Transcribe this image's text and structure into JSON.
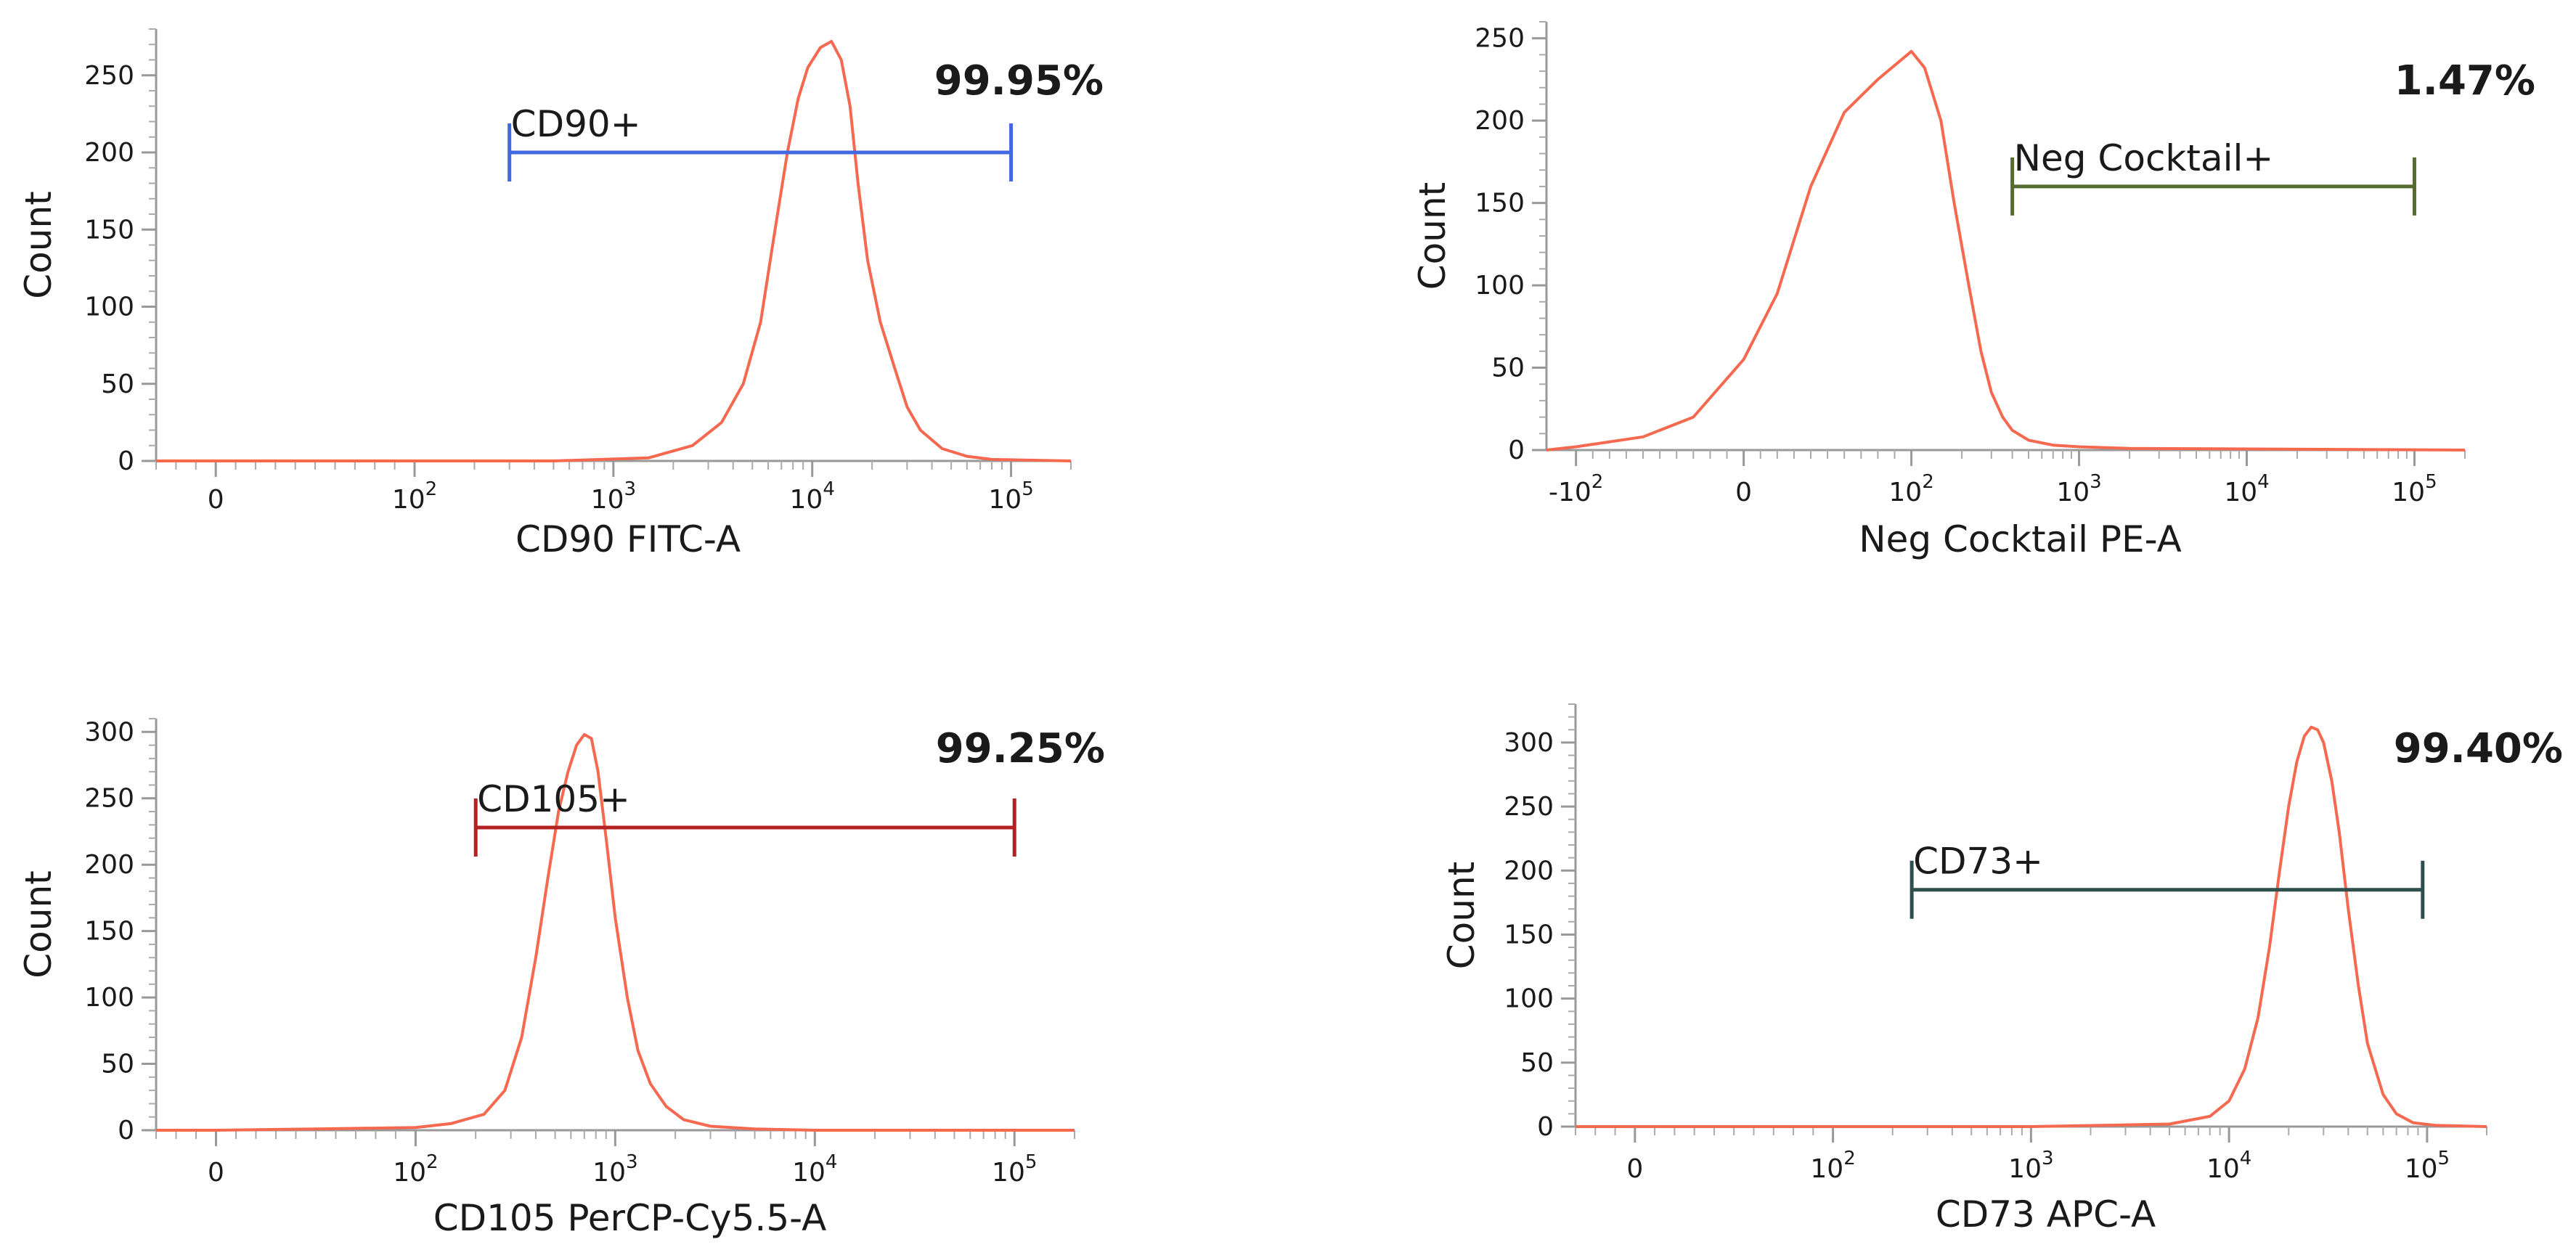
{
  "colors": {
    "histogram": "#f4694f",
    "axis": "#999999",
    "text": "#1a1a1a"
  },
  "chart_data": [
    {
      "type": "line",
      "title": "",
      "xlabel": "CD90 FITC-A",
      "ylabel": "Count",
      "percent": "99.95%",
      "x_scale": "logicle",
      "xlim": [
        -30,
        200000
      ],
      "ylim": [
        0,
        280
      ],
      "y_ticks": [
        0,
        50,
        100,
        150,
        200,
        250
      ],
      "x_ticks": [
        {
          "value": 0,
          "base": "0",
          "exp": ""
        },
        {
          "value": 100,
          "base": "10",
          "exp": "2"
        },
        {
          "value": 1000,
          "base": "10",
          "exp": "3"
        },
        {
          "value": 10000,
          "base": "10",
          "exp": "4"
        },
        {
          "value": 100000,
          "base": "10",
          "exp": "5"
        }
      ],
      "gate": {
        "label": "CD90+",
        "from": 300,
        "to": 100000,
        "y": 200,
        "color": "#4169e1"
      },
      "series": [
        {
          "name": "CD90",
          "x": [
            -30,
            0,
            100,
            500,
            1500,
            2500,
            3500,
            4500,
            5500,
            6500,
            7500,
            8500,
            9500,
            11000,
            12500,
            14000,
            15500,
            17000,
            19000,
            22000,
            26000,
            30000,
            35000,
            45000,
            60000,
            80000,
            200000
          ],
          "y": [
            0,
            0,
            0,
            0,
            2,
            10,
            25,
            50,
            90,
            150,
            200,
            235,
            255,
            268,
            272,
            260,
            230,
            180,
            130,
            90,
            60,
            35,
            20,
            8,
            3,
            1,
            0
          ]
        }
      ]
    },
    {
      "type": "line",
      "title": "",
      "xlabel": "Neg Cocktail PE-A",
      "ylabel": "Count",
      "percent": "1.47%",
      "x_scale": "logicle",
      "xlim": [
        -150,
        200000
      ],
      "ylim": [
        0,
        260
      ],
      "y_ticks": [
        0,
        50,
        100,
        150,
        200,
        250
      ],
      "x_ticks": [
        {
          "value": -100,
          "base": "-10",
          "exp": "2"
        },
        {
          "value": 0,
          "base": "0",
          "exp": ""
        },
        {
          "value": 100,
          "base": "10",
          "exp": "2"
        },
        {
          "value": 1000,
          "base": "10",
          "exp": "3"
        },
        {
          "value": 10000,
          "base": "10",
          "exp": "4"
        },
        {
          "value": 100000,
          "base": "10",
          "exp": "5"
        }
      ],
      "gate": {
        "label": "Neg Cocktail+",
        "from": 400,
        "to": 100000,
        "y": 160,
        "color": "#556b2f"
      },
      "series": [
        {
          "name": "Neg Cocktail",
          "x": [
            -150,
            -100,
            -60,
            -30,
            0,
            20,
            40,
            60,
            80,
            100,
            120,
            150,
            180,
            220,
            260,
            300,
            350,
            400,
            500,
            700,
            1000,
            2000,
            200000
          ],
          "y": [
            0,
            2,
            8,
            20,
            55,
            95,
            160,
            205,
            225,
            242,
            232,
            200,
            150,
            100,
            60,
            35,
            20,
            12,
            6,
            3,
            2,
            1,
            0
          ]
        }
      ]
    },
    {
      "type": "line",
      "title": "",
      "xlabel": "CD105 PerCP-Cy5.5-A",
      "ylabel": "Count",
      "percent": "99.25%",
      "x_scale": "logicle",
      "xlim": [
        -30,
        200000
      ],
      "ylim": [
        0,
        310
      ],
      "y_ticks": [
        0,
        50,
        100,
        150,
        200,
        250,
        300
      ],
      "x_ticks": [
        {
          "value": 0,
          "base": "0",
          "exp": ""
        },
        {
          "value": 100,
          "base": "10",
          "exp": "2"
        },
        {
          "value": 1000,
          "base": "10",
          "exp": "3"
        },
        {
          "value": 10000,
          "base": "10",
          "exp": "4"
        },
        {
          "value": 100000,
          "base": "10",
          "exp": "5"
        }
      ],
      "gate": {
        "label": "CD105+",
        "from": 200,
        "to": 100000,
        "y": 228,
        "color": "#b22222"
      },
      "series": [
        {
          "name": "CD105",
          "x": [
            -30,
            0,
            50,
            100,
            150,
            220,
            280,
            340,
            400,
            460,
            520,
            580,
            640,
            700,
            760,
            820,
            900,
            1000,
            1150,
            1300,
            1500,
            1800,
            2200,
            3000,
            5000,
            10000,
            200000
          ],
          "y": [
            0,
            0,
            1,
            2,
            5,
            12,
            30,
            70,
            130,
            190,
            240,
            270,
            290,
            298,
            295,
            270,
            220,
            160,
            100,
            60,
            35,
            18,
            8,
            3,
            1,
            0,
            0
          ]
        }
      ]
    },
    {
      "type": "line",
      "title": "",
      "xlabel": "CD73 APC-A",
      "ylabel": "Count",
      "percent": "99.40%",
      "x_scale": "logicle",
      "xlim": [
        -30,
        200000
      ],
      "ylim": [
        0,
        330
      ],
      "y_ticks": [
        0,
        50,
        100,
        150,
        200,
        250,
        300
      ],
      "x_ticks": [
        {
          "value": 0,
          "base": "0",
          "exp": ""
        },
        {
          "value": 100,
          "base": "10",
          "exp": "2"
        },
        {
          "value": 1000,
          "base": "10",
          "exp": "3"
        },
        {
          "value": 10000,
          "base": "10",
          "exp": "4"
        },
        {
          "value": 100000,
          "base": "10",
          "exp": "5"
        }
      ],
      "gate": {
        "label": "CD73+",
        "from": 250,
        "to": 95000,
        "y": 185,
        "color": "#2f4f4f"
      },
      "series": [
        {
          "name": "CD73",
          "x": [
            -30,
            0,
            100,
            1000,
            5000,
            8000,
            10000,
            12000,
            14000,
            16000,
            18000,
            20000,
            22000,
            24000,
            26000,
            28000,
            30000,
            33000,
            36000,
            40000,
            45000,
            50000,
            60000,
            70000,
            85000,
            110000,
            200000
          ],
          "y": [
            0,
            0,
            0,
            0,
            2,
            8,
            20,
            45,
            85,
            140,
            200,
            250,
            285,
            305,
            312,
            310,
            300,
            270,
            230,
            170,
            110,
            65,
            25,
            10,
            3,
            1,
            0
          ]
        }
      ]
    }
  ]
}
